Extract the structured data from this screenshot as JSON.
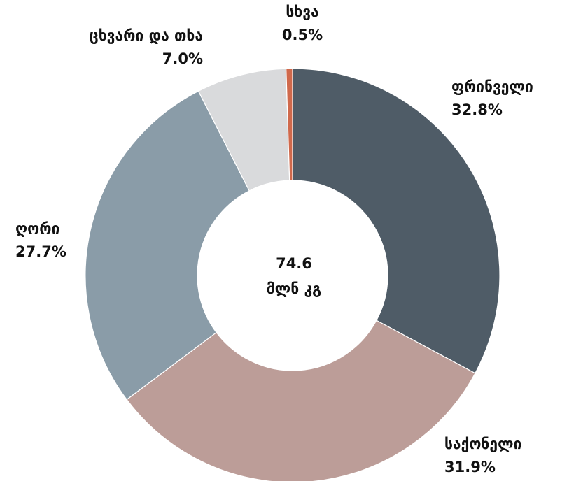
{
  "chart_data": {
    "type": "donut",
    "categories": [
      "ფრინველი",
      "საქონელი",
      "ღორი",
      "ცხვარი და თხა",
      "სხვა"
    ],
    "values": [
      32.8,
      31.9,
      27.7,
      7.0,
      0.5
    ],
    "value_labels": [
      "32.8%",
      "31.9%",
      "27.7%",
      "7.0%",
      "0.5%"
    ],
    "colors": [
      "#4f5c67",
      "#bc9d98",
      "#8a9ca8",
      "#d9dadc",
      "#d0694c"
    ],
    "center_value": 74.6,
    "center_unit": "მლნ კგ"
  }
}
